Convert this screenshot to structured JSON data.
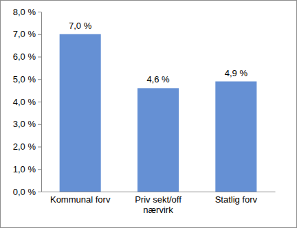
{
  "chart_data": {
    "type": "bar",
    "categories": [
      "Kommunal forv",
      "Priv sekt/off nærvirk",
      "Statlig forv"
    ],
    "values": [
      7.0,
      4.6,
      4.9
    ],
    "value_labels": [
      "7,0 %",
      "4,6 %",
      "4,9 %"
    ],
    "color": "#6590d4",
    "ylim": [
      0,
      8
    ],
    "yticks": [
      {
        "value": 0,
        "label": "0,0 %"
      },
      {
        "value": 1,
        "label": "1,0 %"
      },
      {
        "value": 2,
        "label": "2,0 %"
      },
      {
        "value": 3,
        "label": "3,0 %"
      },
      {
        "value": 4,
        "label": "4,0 %"
      },
      {
        "value": 5,
        "label": "5,0 %"
      },
      {
        "value": 6,
        "label": "6,0 %"
      },
      {
        "value": 7,
        "label": "7,0 %"
      },
      {
        "value": 8,
        "label": "8,0 %"
      }
    ],
    "data_labels": true,
    "grid": false
  }
}
